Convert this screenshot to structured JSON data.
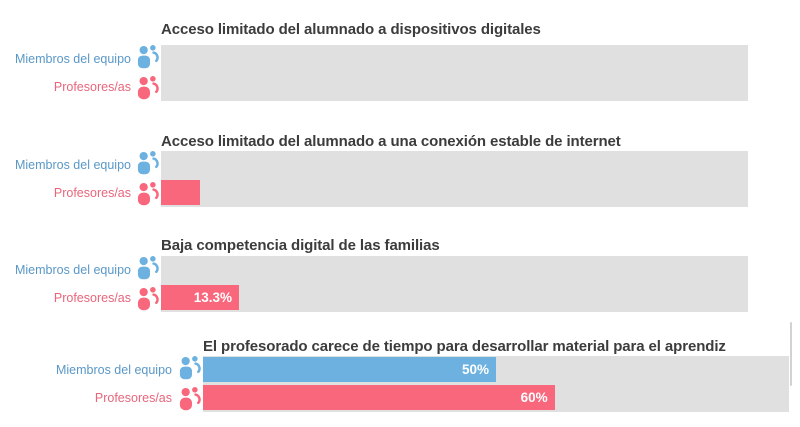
{
  "legend": {
    "members": "Miembros del equipo",
    "teachers": "Profesores/as"
  },
  "icons": {
    "members": "people-icon",
    "teachers": "people-icon"
  },
  "colors": {
    "members_bar": "#6CB1E0",
    "teachers_bar": "#F9677C",
    "members_text": "#5A98C7",
    "teachers_text": "#E8657B",
    "track": "#E0E0E0",
    "title_text": "#3C3C3C",
    "value_text": "#FFFFFF"
  },
  "sections": [
    {
      "title": "Acceso limitado del alumnado a dispositivos digitales",
      "members": {
        "value_pct": 0,
        "value_label": ""
      },
      "teachers": {
        "value_pct": 0,
        "value_label": ""
      }
    },
    {
      "title": "Acceso limitado del alumnado a una conexión estable de internet",
      "members": {
        "value_pct": 0,
        "value_label": ""
      },
      "teachers": {
        "value_pct": 6.7,
        "value_label": ""
      }
    },
    {
      "title": "Baja competencia digital de las familias",
      "members": {
        "value_pct": 0,
        "value_label": ""
      },
      "teachers": {
        "value_pct": 13.3,
        "value_label": "13.3%"
      }
    },
    {
      "title": "El profesorado carece de tiempo para desarrollar material para el aprendiz",
      "members": {
        "value_pct": 50,
        "value_label": "50%"
      },
      "teachers": {
        "value_pct": 60,
        "value_label": "60%"
      }
    }
  ],
  "chart_data": {
    "type": "bar",
    "orientation": "horizontal",
    "categories": [
      "Acceso limitado del alumnado a dispositivos digitales",
      "Acceso limitado del alumnado a una conexión estable de internet",
      "Baja competencia digital de las familias",
      "El profesorado carece de tiempo para desarrollar material para el aprendiz"
    ],
    "series": [
      {
        "name": "Miembros del equipo",
        "color": "#6CB1E0",
        "values": [
          0,
          0,
          0,
          50
        ]
      },
      {
        "name": "Profesores/as",
        "color": "#F9677C",
        "values": [
          0,
          6.7,
          13.3,
          60
        ]
      }
    ],
    "value_unit": "%",
    "xlim": [
      0,
      100
    ],
    "grid": false,
    "legend_position": "left-of-each-row",
    "visible_data_labels": [
      "13.3%",
      "50%",
      "60%"
    ]
  }
}
